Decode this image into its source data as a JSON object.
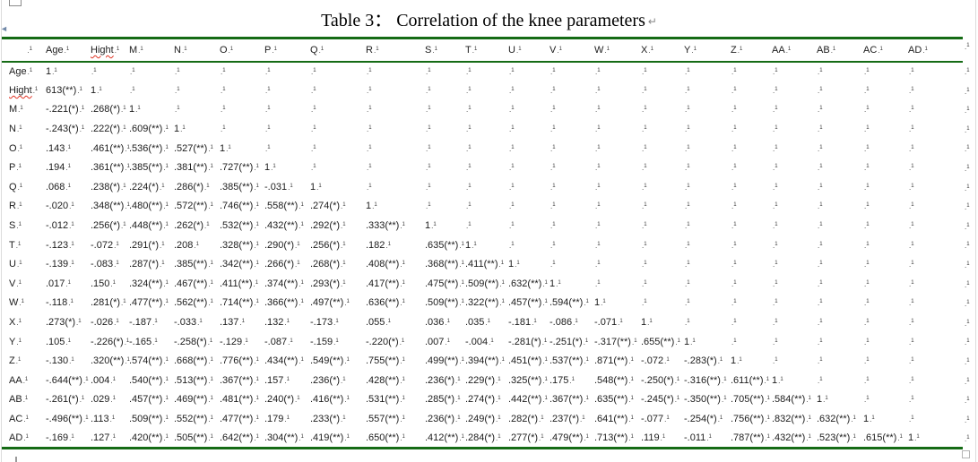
{
  "page": {
    "title": "Table 3：  Correlation of the knee parameters",
    "paragraph_mark": "↵"
  },
  "marks": {
    "cell_end_dot": ".",
    "cell_end_tick": "1",
    "misspelled_word": "Hight",
    "left_arrow_glyph": "◄"
  },
  "colors": {
    "table_border_green": "#156b15",
    "spellcheck_red": "#e03020"
  },
  "table": {
    "corner_label": "",
    "columns": [
      "Age",
      "Hight",
      "M",
      "N",
      "O",
      "P",
      "Q",
      "R",
      "S",
      "T",
      "U",
      "V",
      "W",
      "X",
      "Y",
      "Z",
      "AA",
      "AB",
      "AC",
      "AD"
    ],
    "rows": [
      {
        "label": "Age",
        "values": [
          "1"
        ]
      },
      {
        "label": "Hight",
        "values": [
          "613(**)",
          "1"
        ]
      },
      {
        "label": "M",
        "values": [
          "-.221(*)",
          ".268(*)",
          "1"
        ]
      },
      {
        "label": "N",
        "values": [
          "-.243(*)",
          ".222(*)",
          ".609(**)",
          "1"
        ]
      },
      {
        "label": "O",
        "values": [
          ".143",
          ".461(**)",
          ".536(**)",
          ".527(**)",
          "1"
        ]
      },
      {
        "label": "P",
        "values": [
          ".194",
          ".361(**)",
          ".385(**)",
          ".381(**)",
          ".727(**)",
          "1"
        ]
      },
      {
        "label": "Q",
        "values": [
          ".068",
          ".238(*)",
          ".224(*)",
          ".286(*)",
          ".385(**)",
          "-.031",
          "1"
        ]
      },
      {
        "label": "R",
        "values": [
          "-.020",
          ".348(**)",
          ".480(**)",
          ".572(**)",
          ".746(**)",
          ".558(**)",
          ".274(*)",
          "1"
        ]
      },
      {
        "label": "S",
        "values": [
          "-.012",
          ".256(*)",
          ".448(**)",
          ".262(*)",
          ".532(**)",
          ".432(**)",
          ".292(*)",
          ".333(**)",
          "1"
        ]
      },
      {
        "label": "T",
        "values": [
          "-.123",
          "-.072",
          ".291(*)",
          ".208",
          ".328(**)",
          ".290(*)",
          ".256(*)",
          ".182",
          ".635(**)",
          "1"
        ]
      },
      {
        "label": "U",
        "values": [
          "-.139",
          "-.083",
          ".287(*)",
          ".385(**)",
          ".342(**)",
          ".266(*)",
          ".268(*)",
          ".408(**)",
          ".368(**)",
          ".411(**)",
          "1"
        ]
      },
      {
        "label": "V",
        "values": [
          ".017",
          ".150",
          ".324(**)",
          ".467(**)",
          ".411(**)",
          ".374(**)",
          ".293(*)",
          ".417(**)",
          ".475(**)",
          ".509(**)",
          ".632(**)",
          "1"
        ]
      },
      {
        "label": "W",
        "values": [
          "-.118",
          ".281(*)",
          ".477(**)",
          ".562(**)",
          ".714(**)",
          ".366(**)",
          ".497(**)",
          ".636(**)",
          ".509(**)",
          ".322(**)",
          ".457(**)",
          ".594(**)",
          "1"
        ]
      },
      {
        "label": "X",
        "values": [
          ".273(*)",
          "-.026",
          "-.187",
          "-.033",
          ".137",
          ".132",
          "-.173",
          ".055",
          ".036",
          ".035",
          "-.181",
          "-.086",
          "-.071",
          "1"
        ]
      },
      {
        "label": "Y",
        "values": [
          ".105",
          "-.226(*)",
          "-.165",
          "-.258(*)",
          "-.129",
          "-.087",
          "-.159",
          "-.220(*)",
          ".007",
          "-.004",
          "-.281(*)",
          "-.251(*)",
          "-.317(**)",
          ".655(**)",
          "1"
        ]
      },
      {
        "label": "Z",
        "values": [
          "-.130",
          ".320(**)",
          ".574(**)",
          ".668(**)",
          ".776(**)",
          ".434(**)",
          ".549(**)",
          ".755(**)",
          ".499(**)",
          ".394(**)",
          ".451(**)",
          ".537(**)",
          ".871(**)",
          "-.072",
          "-.283(*)",
          "1"
        ]
      },
      {
        "label": "AA",
        "values": [
          "-.644(**)",
          ".004",
          ".540(**)",
          ".513(**)",
          ".367(**)",
          ".157",
          ".236(*)",
          ".428(**)",
          ".236(*)",
          ".229(*)",
          ".325(**)",
          ".175",
          ".548(**)",
          "-.250(*)",
          "-.316(**)",
          ".611(**)",
          "1"
        ]
      },
      {
        "label": "AB",
        "values": [
          "-.261(*)",
          ".029",
          ".457(**)",
          ".469(**)",
          ".481(**)",
          ".240(*)",
          ".416(**)",
          ".531(**)",
          ".285(*)",
          ".274(*)",
          ".442(**)",
          ".367(**)",
          ".635(**)",
          "-.245(*)",
          "-.350(**)",
          ".705(**)",
          ".584(**)",
          "1"
        ]
      },
      {
        "label": "AC",
        "values": [
          "-.496(**)",
          ".113",
          ".509(**)",
          ".552(**)",
          ".477(**)",
          ".179",
          ".233(*)",
          ".557(**)",
          ".236(*)",
          ".249(*)",
          ".282(*)",
          ".237(*)",
          ".641(**)",
          "-.077",
          "-.254(*)",
          ".756(**)",
          ".832(**)",
          ".632(**)",
          "1"
        ]
      },
      {
        "label": "AD",
        "values": [
          "-.169",
          ".127",
          ".420(**)",
          ".505(**)",
          ".642(**)",
          ".304(**)",
          ".419(**)",
          ".650(**)",
          ".412(**)",
          ".284(*)",
          ".277(*)",
          ".479(**)",
          ".713(**)",
          ".119",
          "-.011",
          ".787(**)",
          ".432(**)",
          ".523(**)",
          ".615(**)",
          "1"
        ]
      }
    ]
  }
}
